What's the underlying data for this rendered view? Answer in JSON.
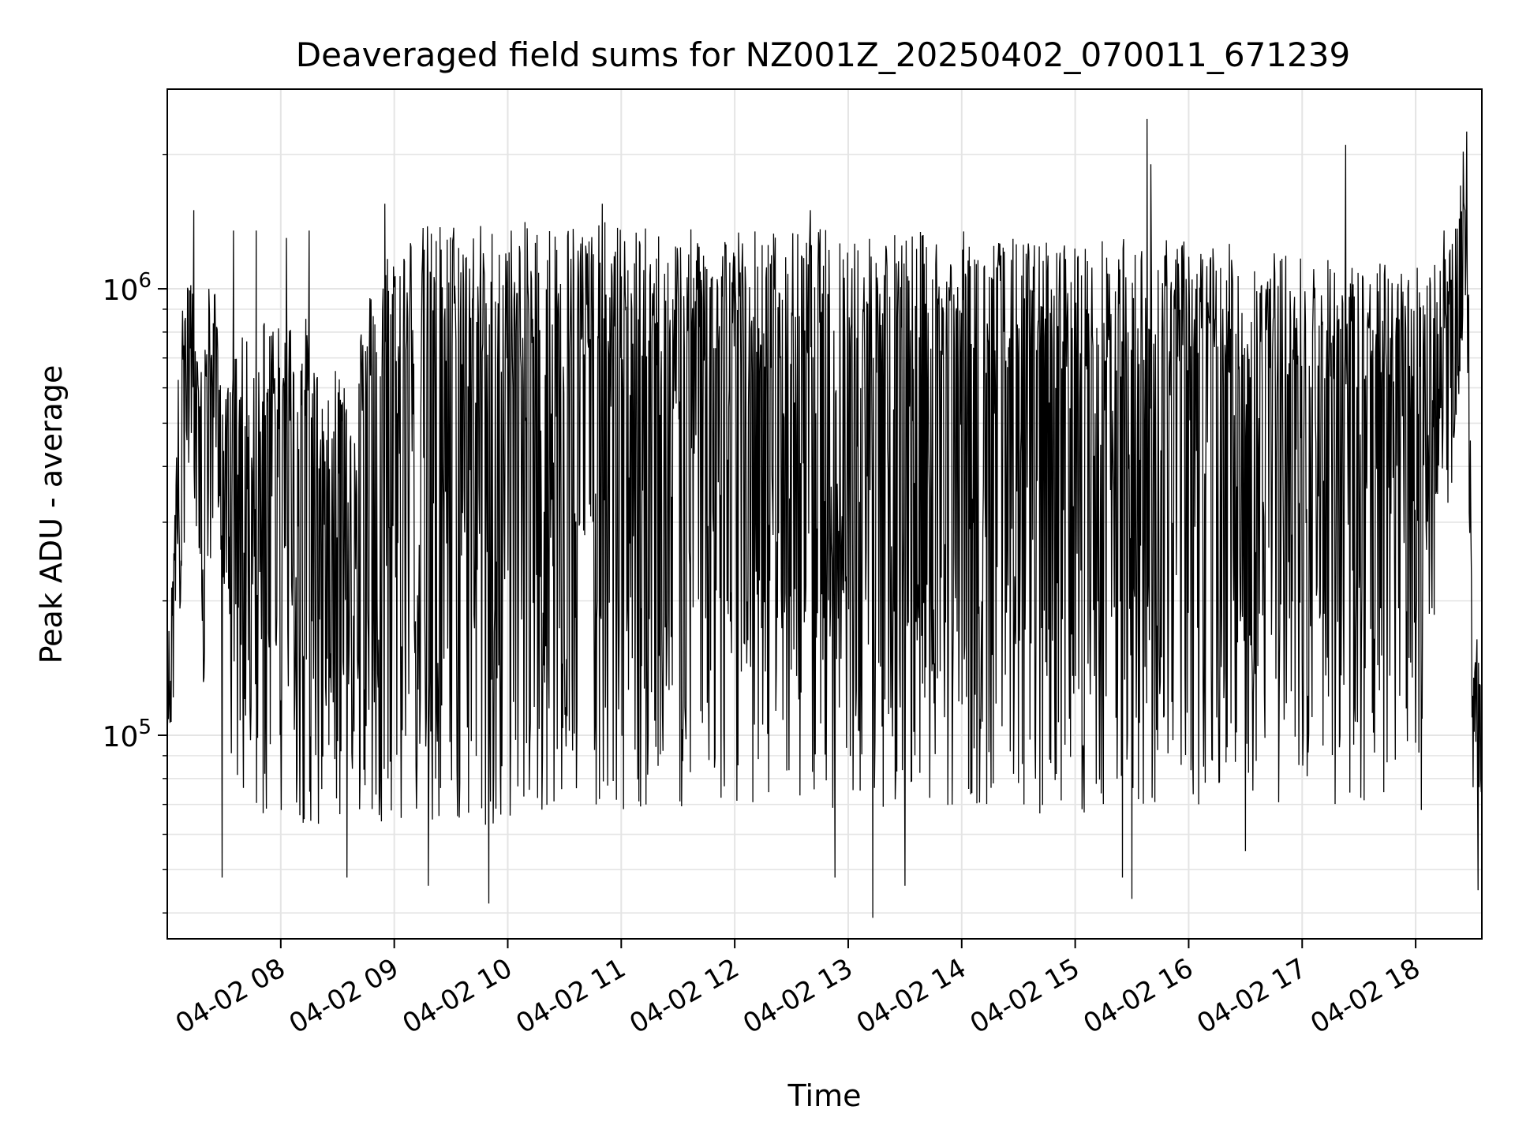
{
  "chart_data": {
    "type": "line",
    "title": "Deaveraged field sums for NZ001Z_20250402_070011_671239",
    "xlabel": "Time",
    "ylabel": "Peak ADU - average",
    "yscale": "log",
    "ylim": [
      35000,
      2800000
    ],
    "xlim": [
      "2025-04-02 07:00",
      "2025-04-02 18:35"
    ],
    "grid": true,
    "line_color": "#000000",
    "x_ticks": [
      {
        "label": "04-02 08",
        "time": "2025-04-02 08:00"
      },
      {
        "label": "04-02 09",
        "time": "2025-04-02 09:00"
      },
      {
        "label": "04-02 10",
        "time": "2025-04-02 10:00"
      },
      {
        "label": "04-02 11",
        "time": "2025-04-02 11:00"
      },
      {
        "label": "04-02 12",
        "time": "2025-04-02 12:00"
      },
      {
        "label": "04-02 13",
        "time": "2025-04-02 13:00"
      },
      {
        "label": "04-02 14",
        "time": "2025-04-02 14:00"
      },
      {
        "label": "04-02 15",
        "time": "2025-04-02 15:00"
      },
      {
        "label": "04-02 16",
        "time": "2025-04-02 16:00"
      },
      {
        "label": "04-02 17",
        "time": "2025-04-02 17:00"
      },
      {
        "label": "04-02 18",
        "time": "2025-04-02 18:00"
      }
    ],
    "y_ticks": [
      {
        "base": "10",
        "exp": "5",
        "value": 100000
      },
      {
        "base": "10",
        "exp": "6",
        "value": 1000000
      }
    ],
    "envelope": {
      "x": [
        "07:00",
        "07:03",
        "07:06",
        "07:10",
        "07:13",
        "07:15",
        "07:20",
        "07:25",
        "07:30",
        "07:35",
        "07:40",
        "07:45",
        "07:50",
        "07:55",
        "08:00",
        "08:10",
        "08:20",
        "08:30",
        "08:40",
        "08:50",
        "09:00",
        "09:30",
        "10:00",
        "10:30",
        "11:00",
        "11:30",
        "12:00",
        "12:30",
        "13:00",
        "13:30",
        "14:00",
        "14:30",
        "15:00",
        "15:30",
        "16:00",
        "16:30",
        "17:00",
        "17:30",
        "18:00",
        "18:10",
        "18:20",
        "18:25",
        "18:28",
        "18:30",
        "18:35"
      ],
      "high": [
        150000,
        250000,
        700000,
        1150000,
        1100000,
        700000,
        850000,
        1000000,
        550000,
        700000,
        900000,
        600000,
        900000,
        950000,
        800000,
        1000000,
        650000,
        700000,
        800000,
        1100000,
        1350000,
        1450000,
        1400000,
        1450000,
        1400000,
        1350000,
        1400000,
        1350000,
        1400000,
        1350000,
        1350000,
        1300000,
        1300000,
        1300000,
        1300000,
        1250000,
        1200000,
        1150000,
        1150000,
        1200000,
        1300000,
        2100000,
        1100000,
        180000,
        150000
      ],
      "low": [
        90000,
        100000,
        150000,
        300000,
        400000,
        200000,
        95000,
        300000,
        180000,
        60000,
        60000,
        55000,
        55000,
        55000,
        58000,
        55000,
        55000,
        55000,
        58000,
        55000,
        55000,
        50000,
        55000,
        60000,
        58000,
        58000,
        60000,
        60000,
        58000,
        58000,
        60000,
        58000,
        55000,
        58000,
        60000,
        60000,
        60000,
        60000,
        65000,
        150000,
        300000,
        500000,
        300000,
        60000,
        70000
      ]
    },
    "spikes": [
      {
        "x": "07:14",
        "y": 1500000
      },
      {
        "x": "07:22",
        "y": 1000000
      },
      {
        "x": "07:35",
        "y": 1350000
      },
      {
        "x": "07:47",
        "y": 1350000
      },
      {
        "x": "08:03",
        "y": 1300000
      },
      {
        "x": "08:15",
        "y": 1350000
      },
      {
        "x": "08:55",
        "y": 1550000
      },
      {
        "x": "10:50",
        "y": 1550000
      },
      {
        "x": "12:40",
        "y": 1500000
      },
      {
        "x": "15:38",
        "y": 2400000
      },
      {
        "x": "15:40",
        "y": 1900000
      },
      {
        "x": "17:23",
        "y": 2100000
      },
      {
        "x": "18:15",
        "y": 1350000
      },
      {
        "x": "18:27",
        "y": 2250000
      }
    ],
    "dips": [
      {
        "x": "07:29",
        "y": 48000
      },
      {
        "x": "08:35",
        "y": 48000
      },
      {
        "x": "09:18",
        "y": 46000
      },
      {
        "x": "09:50",
        "y": 42000
      },
      {
        "x": "12:53",
        "y": 48000
      },
      {
        "x": "13:13",
        "y": 39000
      },
      {
        "x": "13:30",
        "y": 46000
      },
      {
        "x": "15:25",
        "y": 48000
      },
      {
        "x": "15:30",
        "y": 43000
      },
      {
        "x": "16:30",
        "y": 55000
      },
      {
        "x": "18:03",
        "y": 68000
      },
      {
        "x": "18:33",
        "y": 45000
      }
    ]
  }
}
